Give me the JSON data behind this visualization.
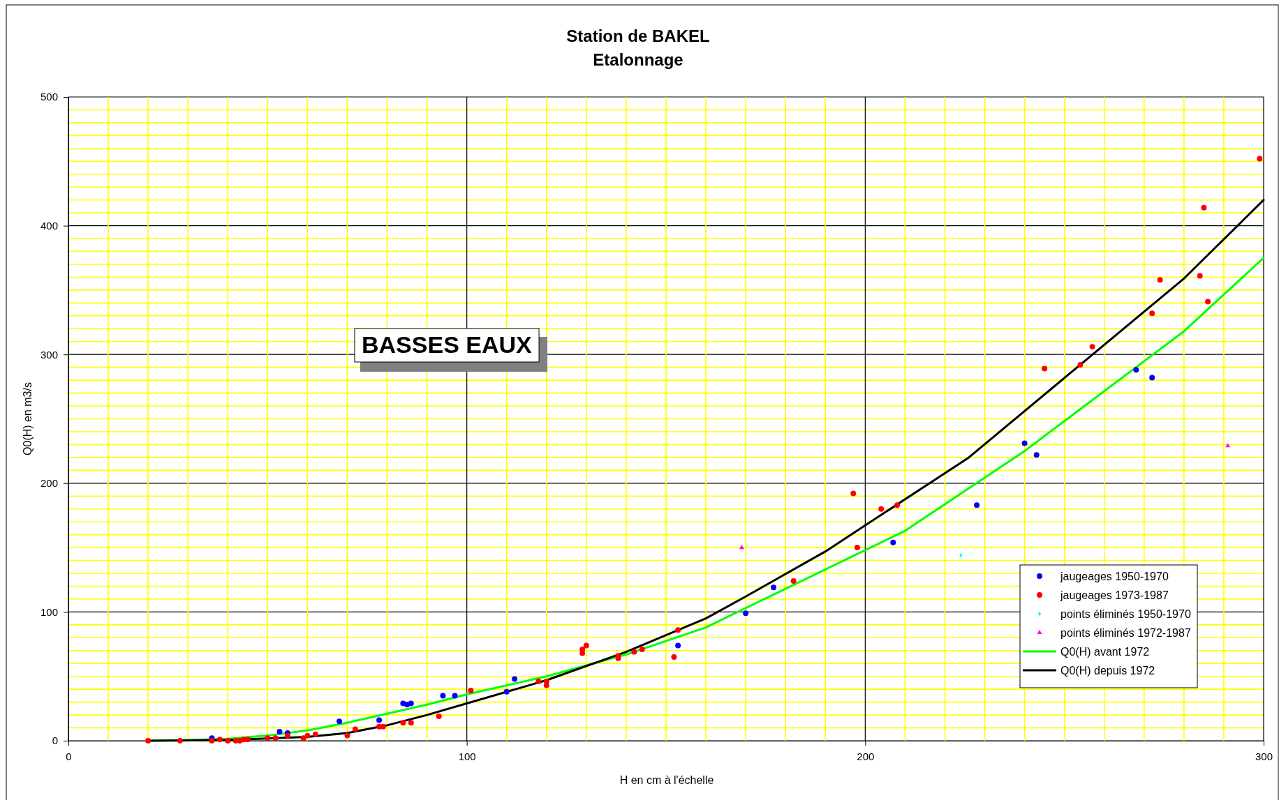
{
  "chart_data": {
    "type": "scatter",
    "title": "Station de BAKEL",
    "subtitle": "Etalonnage",
    "xlabel": "H en cm à l'échelle",
    "ylabel": "Q0(H) en m3/s",
    "annotations": [
      "BASSES EAUX"
    ],
    "xlim": [
      0,
      300
    ],
    "ylim": [
      0,
      500
    ],
    "xticks": [
      0,
      {
        "value": 10,
        "label": null
      },
      {
        "value": 20,
        "label": null
      },
      {
        "value": 30,
        "label": null
      },
      {
        "value": 40,
        "label": null
      },
      {
        "value": 50,
        "label": null
      },
      {
        "value": 60,
        "label": null
      },
      {
        "value": 70,
        "label": null
      },
      {
        "value": 80,
        "label": null
      },
      {
        "value": 90,
        "label": null
      },
      100,
      {
        "value": 110,
        "label": null
      },
      {
        "value": 120,
        "label": null
      },
      {
        "value": 130,
        "label": null
      },
      {
        "value": 140,
        "label": null
      },
      {
        "value": 150,
        "label": null
      },
      {
        "value": 160,
        "label": null
      },
      {
        "value": 170,
        "label": null
      },
      {
        "value": 180,
        "label": null
      },
      {
        "value": 190,
        "label": null
      },
      200,
      {
        "value": 210,
        "label": null
      },
      {
        "value": 220,
        "label": null
      },
      {
        "value": 230,
        "label": null
      },
      {
        "value": 240,
        "label": null
      },
      {
        "value": 250,
        "label": null
      },
      {
        "value": 260,
        "label": null
      },
      {
        "value": 270,
        "label": null
      },
      {
        "value": 280,
        "label": null
      },
      {
        "value": 290,
        "label": null
      },
      300
    ],
    "yticks": [
      0,
      {
        "value": 10,
        "label": null
      },
      {
        "value": 20,
        "label": null
      },
      {
        "value": 30,
        "label": null
      },
      {
        "value": 40,
        "label": null
      },
      {
        "value": 50,
        "label": null
      },
      {
        "value": 60,
        "label": null
      },
      {
        "value": 70,
        "label": null
      },
      {
        "value": 80,
        "label": null
      },
      {
        "value": 90,
        "label": null
      },
      100,
      {
        "value": 110,
        "label": null
      },
      {
        "value": 120,
        "label": null
      },
      {
        "value": 130,
        "label": null
      },
      {
        "value": 140,
        "label": null
      },
      {
        "value": 150,
        "label": null
      },
      {
        "value": 160,
        "label": null
      },
      {
        "value": 170,
        "label": null
      },
      {
        "value": 180,
        "label": null
      },
      {
        "value": 190,
        "label": null
      },
      200,
      {
        "value": 210,
        "label": null
      },
      {
        "value": 220,
        "label": null
      },
      {
        "value": 230,
        "label": null
      },
      {
        "value": 240,
        "label": null
      },
      {
        "value": 250,
        "label": null
      },
      {
        "value": 260,
        "label": null
      },
      {
        "value": 270,
        "label": null
      },
      {
        "value": 280,
        "label": null
      },
      {
        "value": 290,
        "label": null
      },
      300,
      {
        "value": 310,
        "label": null
      },
      {
        "value": 320,
        "label": null
      },
      {
        "value": 330,
        "label": null
      },
      {
        "value": 340,
        "label": null
      },
      {
        "value": 350,
        "label": null
      },
      {
        "value": 360,
        "label": null
      },
      {
        "value": 370,
        "label": null
      },
      {
        "value": 380,
        "label": null
      },
      {
        "value": 390,
        "label": null
      },
      400,
      {
        "value": 410,
        "label": null
      },
      {
        "value": 420,
        "label": null
      },
      {
        "value": 430,
        "label": null
      },
      {
        "value": 440,
        "label": null
      },
      {
        "value": 450,
        "label": null
      },
      {
        "value": 460,
        "label": null
      },
      {
        "value": 470,
        "label": null
      },
      {
        "value": 480,
        "label": null
      },
      {
        "value": 490,
        "label": null
      },
      500
    ],
    "grid": true,
    "legend": "bottom right",
    "series": [
      {
        "name": "jaugeages 1950-1970",
        "marker": "circle",
        "color": "#0000ff",
        "x": [
          36,
          53,
          55,
          68,
          78,
          84,
          85,
          86,
          94,
          97,
          110,
          112,
          153,
          170,
          177,
          207,
          228,
          240,
          243,
          268,
          272
        ],
        "values": [
          2,
          7,
          6,
          15,
          16,
          29,
          28,
          29,
          35,
          35,
          38,
          48,
          74,
          99,
          119,
          154,
          183,
          231,
          222,
          288,
          282
        ]
      },
      {
        "name": "jaugeages 1973-1987",
        "marker": "circle",
        "color": "#ff0000",
        "x": [
          20,
          28,
          36,
          38,
          40,
          42,
          43,
          44,
          45,
          50,
          52,
          55,
          59,
          60,
          62,
          70,
          72,
          78,
          79,
          84,
          86,
          93,
          101,
          118,
          120,
          120,
          129,
          129,
          130,
          138,
          138,
          142,
          144,
          152,
          153,
          182,
          197,
          198,
          204,
          208,
          245,
          254,
          257,
          272,
          274,
          284,
          285,
          286,
          299
        ],
        "values": [
          0,
          0,
          0,
          1,
          0,
          0,
          0,
          1,
          1,
          2,
          2,
          4,
          2,
          4,
          5,
          4,
          9,
          11,
          11,
          14,
          14,
          19,
          39,
          46,
          46,
          43,
          71,
          68,
          74,
          66,
          64,
          69,
          71,
          65,
          86,
          124,
          192,
          150,
          180,
          183,
          289,
          292,
          306,
          332,
          358,
          361,
          414,
          341,
          452
        ]
      },
      {
        "name": "points éliminés 1950-1970",
        "marker": "diamond",
        "color": "#00ffff",
        "x": [
          224
        ],
        "values": [
          144
        ]
      },
      {
        "name": "points éliminés 1972-1987",
        "marker": "triangle",
        "color": "#ff00ff",
        "x": [
          169,
          291
        ],
        "values": [
          150,
          229
        ]
      },
      {
        "name": "Q0(H) avant 1972",
        "type": "line",
        "marker": "none",
        "color": "#00ff00",
        "x": [
          20,
          30,
          40,
          50,
          60,
          70,
          80,
          90,
          100,
          120,
          140,
          160,
          210,
          240,
          280,
          300
        ],
        "values": [
          0,
          0.5,
          1.5,
          4,
          8,
          14,
          21,
          28,
          36,
          50,
          67,
          88,
          163,
          225,
          318,
          375
        ]
      },
      {
        "name": "Q0(H) depuis 1972",
        "type": "line",
        "marker": "none",
        "color": "#000000",
        "x": [
          20,
          40,
          60,
          70,
          80,
          90,
          100,
          120,
          140,
          160,
          170,
          190,
          226,
          280,
          300
        ],
        "values": [
          0,
          0.5,
          3,
          6,
          12,
          20,
          29,
          47,
          69,
          95,
          112,
          147,
          220,
          359,
          420
        ]
      }
    ]
  }
}
